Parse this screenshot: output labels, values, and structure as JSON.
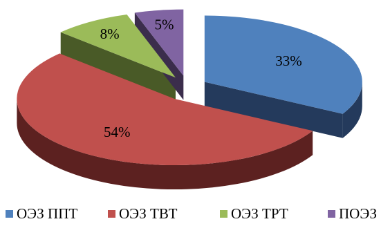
{
  "chart_data": {
    "type": "pie",
    "style": "3d-exploded",
    "categories": [
      "ОЭЗ ППТ",
      "ОЭЗ ТВТ",
      "ОЭЗ ТРТ",
      "ПОЭЗ"
    ],
    "values": [
      33,
      54,
      8,
      5
    ],
    "value_labels": [
      "33%",
      "54%",
      "8%",
      "5%"
    ],
    "colors": [
      "#4f81bd",
      "#c0504d",
      "#9bbb59",
      "#8064a2"
    ],
    "side_colors": [
      "#243a5c",
      "#5c2120",
      "#495a27",
      "#3b2d4c"
    ],
    "legend": {
      "position": "bottom"
    }
  }
}
